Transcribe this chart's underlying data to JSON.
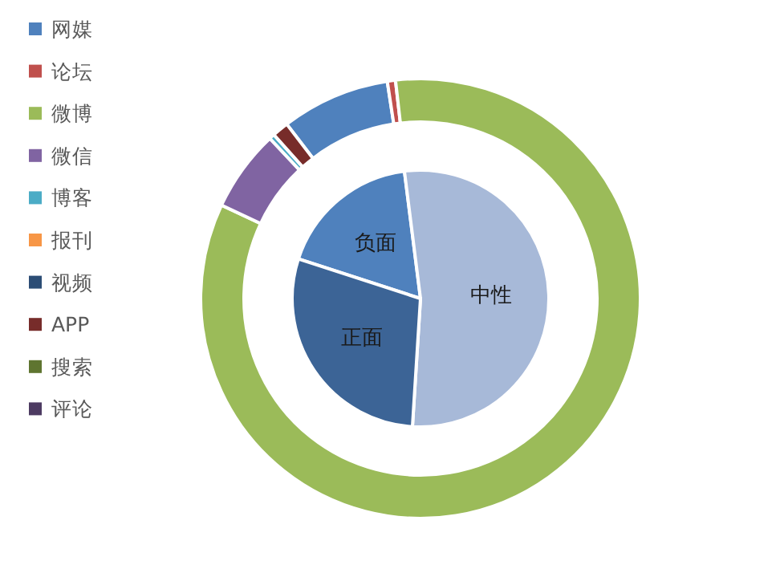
{
  "chart_data": [
    {
      "type": "donut",
      "categories": [
        "网媒",
        "论坛",
        "微博",
        "微信",
        "博客",
        "报刊",
        "视频",
        "APP",
        "搜索",
        "评论"
      ],
      "values": [
        8,
        0.6,
        83.8,
        6,
        0.4,
        0,
        0,
        1.2,
        0,
        0
      ],
      "colors": [
        "#4f81bd",
        "#c0504d",
        "#9bbb59",
        "#8064a2",
        "#4bacc6",
        "#f79646",
        "#2c4d75",
        "#772c2a",
        "#5f7530",
        "#4d3b62"
      ],
      "legend": "left"
    },
    {
      "type": "pie",
      "categories": [
        "负面",
        "中性",
        "正面"
      ],
      "values": [
        18,
        53,
        29
      ],
      "colors": [
        "#4f81bd",
        "#a7b9d8",
        "#3c6496"
      ],
      "legend": false
    }
  ]
}
